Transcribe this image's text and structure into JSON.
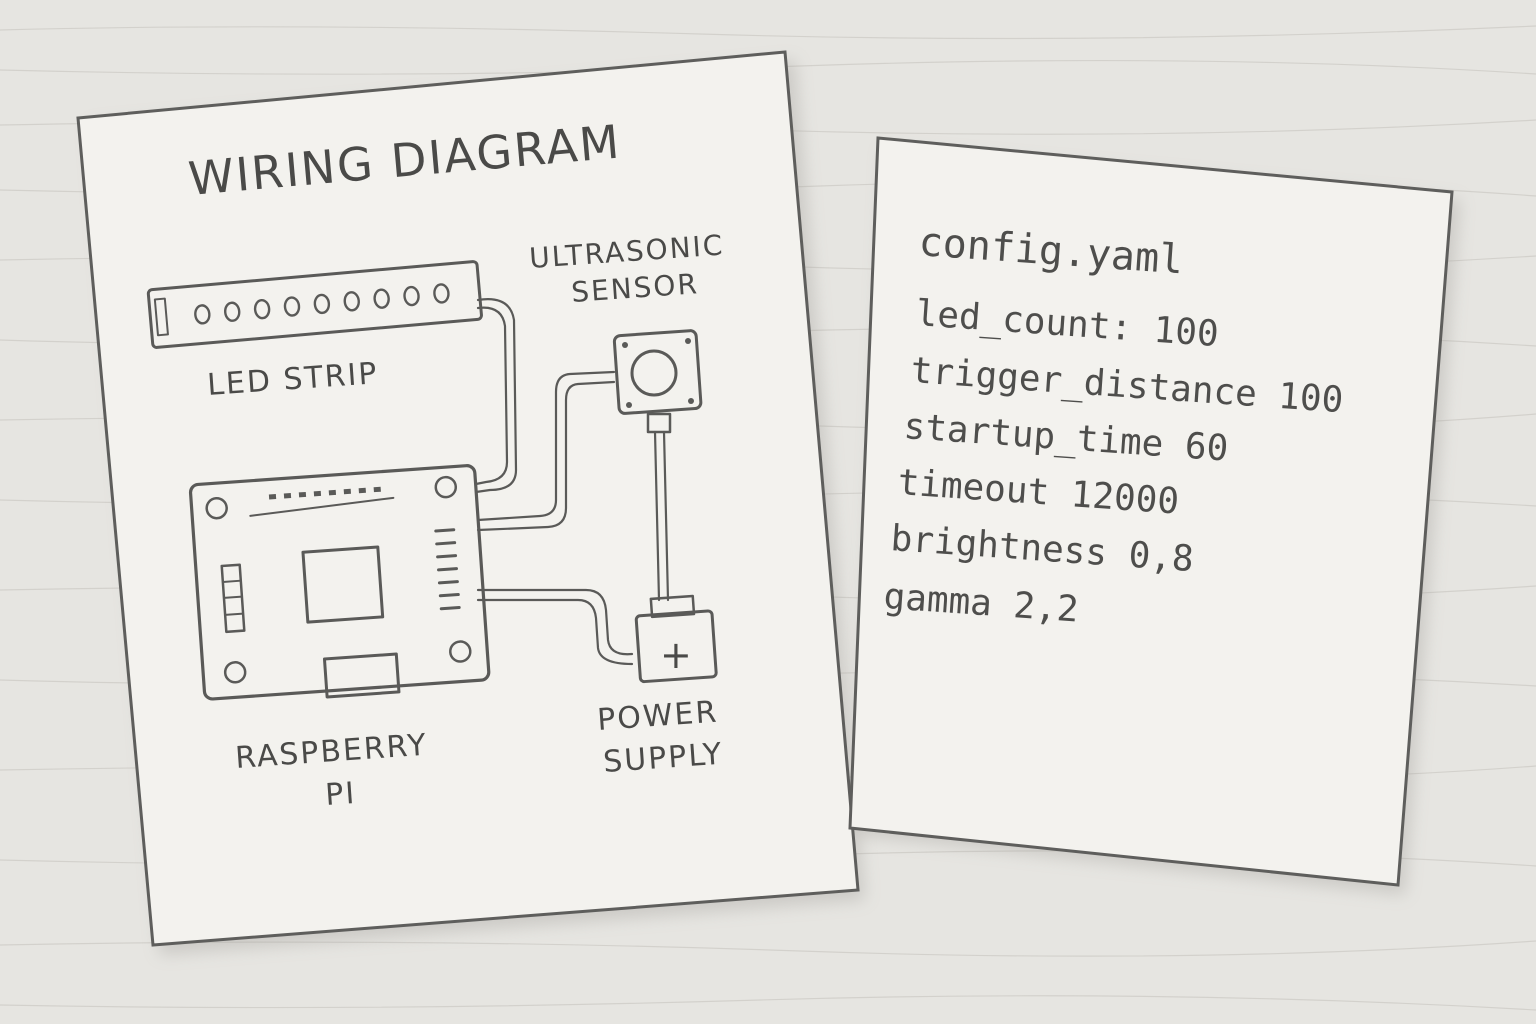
{
  "wiring_sheet": {
    "title": "WIRING DIAGRAM",
    "components": {
      "led_strip": "LED STRIP",
      "ultrasonic_sensor": [
        "ULTRASONIC",
        "SENSOR"
      ],
      "raspberry_pi": [
        "RASPBERRY",
        "PI"
      ],
      "power_supply": [
        "POWER",
        "SUPPLY"
      ],
      "power_symbol": "+"
    }
  },
  "config_sheet": {
    "filename": "config.yaml",
    "lines": [
      "led_count: 100",
      "trigger_distance 100",
      "startup_time  60",
      "timeout  12000",
      "brightness 0,8",
      "gamma  2,2"
    ]
  }
}
